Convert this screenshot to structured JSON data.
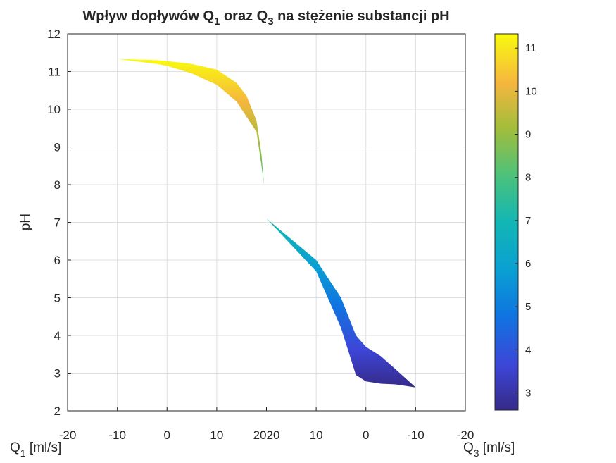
{
  "chart_data": {
    "type": "area",
    "title": {
      "text": "Wpływ dopływów Q",
      "sub1": "1",
      "mid": " oraz Q",
      "sub2": "3",
      "tail": " na stężenie substancji pH"
    },
    "ylabel": "pH",
    "xlabel_left": {
      "text": "Q",
      "sub": "1",
      "unit": " [ml/s]"
    },
    "xlabel_right": {
      "text": "Q",
      "sub": "3",
      "unit": " [ml/s]"
    },
    "ylim": [
      2,
      12
    ],
    "yticks": [
      "2",
      "3",
      "4",
      "5",
      "6",
      "7",
      "8",
      "9",
      "10",
      "11",
      "12"
    ],
    "x_left": {
      "range": [
        -20,
        20
      ],
      "ticks": [
        "-20",
        "-10",
        "0",
        "10",
        "20"
      ]
    },
    "x_right": {
      "range": [
        20,
        -20
      ],
      "ticks": [
        "20",
        "10",
        "0",
        "-10",
        "-20"
      ]
    },
    "grid": true,
    "colorbar": {
      "range": [
        2.6,
        11.33
      ],
      "ticks": [
        "3",
        "4",
        "5",
        "6",
        "7",
        "8",
        "9",
        "10",
        "11"
      ],
      "colormap": "parula"
    },
    "band_upper": [
      [
        -10,
        11.33
      ],
      [
        -2,
        11.3
      ],
      [
        0,
        11.28
      ],
      [
        5,
        11.2
      ],
      [
        10,
        11.05
      ],
      [
        14,
        10.7
      ],
      [
        16,
        10.35
      ],
      [
        18,
        9.7
      ],
      [
        19,
        8.8
      ],
      [
        19.5,
        8.0
      ],
      [
        20,
        7.1
      ],
      [
        10,
        6.0
      ],
      [
        5,
        5.0
      ],
      [
        2,
        4.0
      ],
      [
        0,
        3.7
      ],
      [
        -3,
        3.45
      ],
      [
        -6,
        3.1
      ],
      [
        -10,
        2.62
      ]
    ],
    "band_lower": [
      [
        -10,
        11.33
      ],
      [
        -2,
        11.2
      ],
      [
        0,
        11.15
      ],
      [
        5,
        10.95
      ],
      [
        10,
        10.65
      ],
      [
        14,
        10.2
      ],
      [
        16,
        9.8
      ],
      [
        18,
        9.4
      ],
      [
        19,
        8.5
      ],
      [
        19.5,
        8.0
      ],
      [
        20,
        7.1
      ],
      [
        10,
        5.7
      ],
      [
        5,
        4.2
      ],
      [
        2,
        2.95
      ],
      [
        0,
        2.78
      ],
      [
        -3,
        2.72
      ],
      [
        -6,
        2.7
      ],
      [
        -10,
        2.62
      ]
    ]
  }
}
